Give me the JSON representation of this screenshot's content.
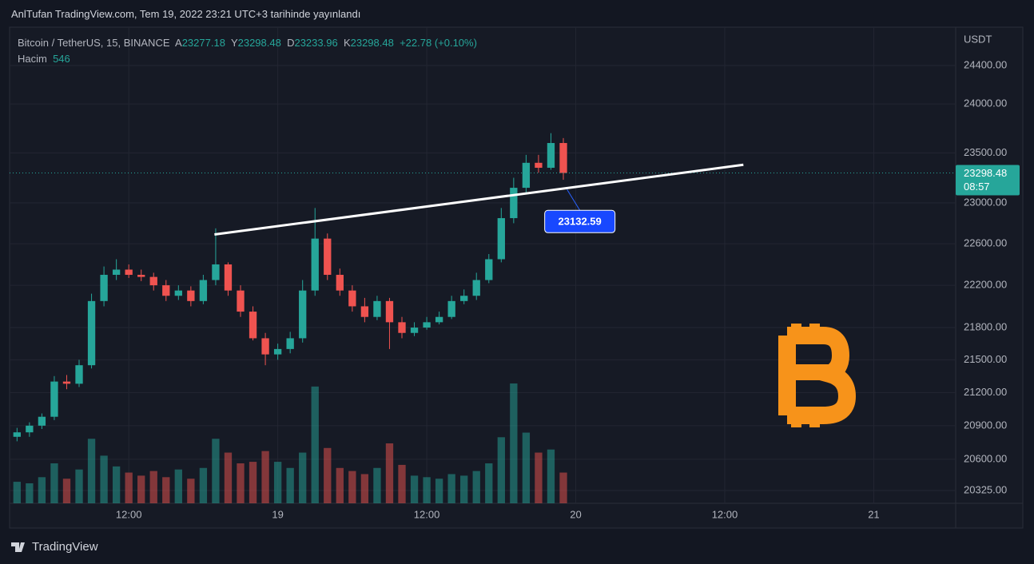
{
  "header": {
    "title": "AnlTufan TradingView.com, Tem 19, 2022 23:21 UTC+3 tarihinde yayınlandı"
  },
  "legend": {
    "symbol": "Bitcoin / TetherUS, 15, BINANCE",
    "open_label": "A",
    "open": "23277.18",
    "high_label": "Y",
    "high": "23298.48",
    "low_label": "D",
    "low": "23233.96",
    "close_label": "K",
    "close": "23298.48",
    "change": "+22.78 (+0.10%)",
    "volume_label": "Hacim",
    "volume": "546"
  },
  "footer": {
    "brand": "TradingView"
  },
  "chart_data": {
    "type": "candlestick",
    "log": true,
    "grid": true,
    "y_axis_title": "USDT",
    "up_color": "#26a69a",
    "down_color": "#ef5350",
    "x": [
      3,
      4,
      5,
      6,
      7,
      8,
      9,
      10,
      11,
      12,
      13,
      14,
      15,
      16,
      17,
      18,
      19,
      20,
      21,
      22,
      23,
      24,
      25,
      26,
      27,
      28,
      29,
      30,
      31,
      32,
      33,
      34,
      35,
      36,
      37,
      38,
      39,
      40,
      41,
      42,
      43,
      44,
      45,
      46,
      47
    ],
    "open": [
      20800,
      20840,
      20900,
      20980,
      21300,
      21280,
      21450,
      22050,
      22300,
      22350,
      22300,
      22280,
      22200,
      22100,
      22150,
      22050,
      22250,
      22400,
      22150,
      21950,
      21700,
      21550,
      21600,
      21700,
      22150,
      22650,
      22300,
      22150,
      22000,
      21900,
      22050,
      21850,
      21750,
      21800,
      21850,
      21900,
      22050,
      22100,
      22250,
      22450,
      22850,
      23150,
      23400,
      23350,
      23600
    ],
    "high": [
      20880,
      20930,
      21010,
      21350,
      21360,
      21500,
      22120,
      22380,
      22450,
      22400,
      22350,
      22320,
      22250,
      22200,
      22190,
      22300,
      22750,
      22420,
      22200,
      22000,
      21750,
      21650,
      21760,
      22250,
      22950,
      22700,
      22360,
      22200,
      22080,
      22100,
      22080,
      21900,
      21850,
      21900,
      21950,
      22100,
      22160,
      22320,
      22500,
      22950,
      23250,
      23480,
      23480,
      23700,
      23650
    ],
    "low": [
      20760,
      20800,
      20870,
      20950,
      21230,
      21250,
      21420,
      22000,
      22250,
      22270,
      22240,
      22150,
      22050,
      22060,
      22000,
      22020,
      22200,
      22100,
      21900,
      21680,
      21450,
      21500,
      21560,
      21660,
      22100,
      22250,
      22100,
      21950,
      21850,
      21870,
      21600,
      21700,
      21720,
      21780,
      21830,
      21880,
      22020,
      22060,
      22220,
      22420,
      22800,
      23100,
      23300,
      23330,
      23230
    ],
    "close": [
      20840,
      20900,
      20980,
      21300,
      21280,
      21450,
      22050,
      22300,
      22350,
      22300,
      22280,
      22200,
      22100,
      22150,
      22050,
      22250,
      22400,
      22150,
      21950,
      21700,
      21550,
      21600,
      21700,
      22150,
      22650,
      22300,
      22150,
      22000,
      21900,
      22050,
      21850,
      21750,
      21800,
      21850,
      21900,
      22050,
      22100,
      22250,
      22450,
      22850,
      23150,
      23400,
      23350,
      23600,
      23298
    ],
    "volume": [
      1400,
      1300,
      1700,
      2600,
      1600,
      2200,
      4200,
      3100,
      2400,
      2000,
      1800,
      2100,
      1700,
      2200,
      1600,
      2300,
      4200,
      3300,
      2600,
      2700,
      3400,
      2700,
      2300,
      3300,
      7600,
      3600,
      2300,
      2100,
      1900,
      2300,
      3900,
      2500,
      1800,
      1700,
      1600,
      1900,
      1800,
      2100,
      2600,
      4300,
      7800,
      4600,
      3300,
      3500,
      2000
    ],
    "xlim": [
      2.4,
      78.6
    ],
    "xticks": [
      {
        "value": 12,
        "label": "12:00"
      },
      {
        "value": 24,
        "label": "19"
      },
      {
        "value": 36,
        "label": "12:00"
      },
      {
        "value": 48,
        "label": "20"
      },
      {
        "value": 60,
        "label": "12:00"
      },
      {
        "value": 72,
        "label": "21"
      }
    ],
    "ylim": [
      20214,
      24788
    ],
    "yticks": [
      {
        "value": 20325,
        "label": "20325.00"
      },
      {
        "value": 20600,
        "label": "20600.00"
      },
      {
        "value": 20900,
        "label": "20900.00"
      },
      {
        "value": 21200,
        "label": "21200.00"
      },
      {
        "value": 21500,
        "label": "21500.00"
      },
      {
        "value": 21800,
        "label": "21800.00"
      },
      {
        "value": 22200,
        "label": "22200.00"
      },
      {
        "value": 22600,
        "label": "22600.00"
      },
      {
        "value": 23000,
        "label": "23000.00"
      },
      {
        "value": 23500,
        "label": "23500.00"
      },
      {
        "value": 24000,
        "label": "24000.00"
      },
      {
        "value": 24400,
        "label": "24400.00"
      }
    ],
    "last_price": {
      "value": 23298.48,
      "label": "23298.48",
      "countdown": "08:57"
    },
    "trend_line": {
      "x": [
        18.9,
        61.5
      ],
      "y": [
        22690,
        23380
      ]
    },
    "trend_point": {
      "x": 47.3,
      "y": 23132.59
    }
  }
}
